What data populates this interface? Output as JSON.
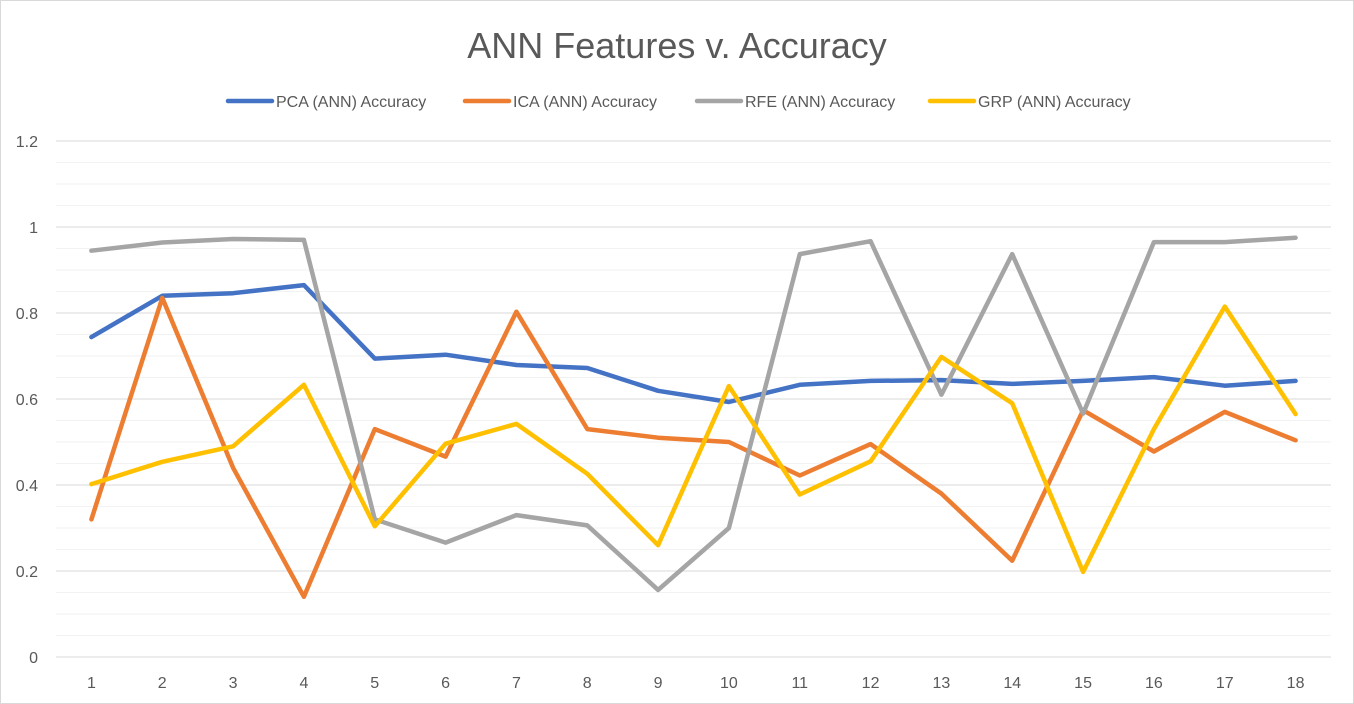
{
  "chart_data": {
    "type": "line",
    "title": "ANN Features v. Accuracy",
    "xlabel": "",
    "ylabel": "",
    "x": [
      1,
      2,
      3,
      4,
      5,
      6,
      7,
      8,
      9,
      10,
      11,
      12,
      13,
      14,
      15,
      16,
      17,
      18
    ],
    "ylim": [
      0,
      1.2
    ],
    "yticks": [
      0,
      0.2,
      0.4,
      0.6,
      0.8,
      1,
      1.2
    ],
    "ytick_labels": [
      "0",
      "0.2",
      "0.4",
      "0.6",
      "0.8",
      "1",
      "1.2"
    ],
    "grid": true,
    "minor_grid": true,
    "legend_position": "top",
    "series": [
      {
        "name": "PCA (ANN) Accuracy",
        "color": "#4472C4",
        "values": [
          0.744,
          0.84,
          0.846,
          0.865,
          0.694,
          0.703,
          0.679,
          0.672,
          0.619,
          0.593,
          0.633,
          0.642,
          0.644,
          0.635,
          0.642,
          0.651,
          0.631,
          0.642
        ]
      },
      {
        "name": "ICA (ANN) Accuracy",
        "color": "#ED7D31",
        "values": [
          0.32,
          0.835,
          0.44,
          0.14,
          0.53,
          0.466,
          0.803,
          0.53,
          0.51,
          0.5,
          0.422,
          0.495,
          0.38,
          0.224,
          0.574,
          0.478,
          0.57,
          0.504
        ]
      },
      {
        "name": "RFE (ANN) Accuracy",
        "color": "#A5A5A5",
        "values": [
          0.945,
          0.964,
          0.972,
          0.97,
          0.32,
          0.266,
          0.33,
          0.306,
          0.156,
          0.3,
          0.937,
          0.967,
          0.61,
          0.937,
          0.566,
          0.965,
          0.965,
          0.975
        ]
      },
      {
        "name": "GRP (ANN) Accuracy",
        "color": "#FFC000",
        "values": [
          0.402,
          0.454,
          0.49,
          0.633,
          0.304,
          0.496,
          0.542,
          0.426,
          0.26,
          0.63,
          0.378,
          0.455,
          0.698,
          0.59,
          0.198,
          0.53,
          0.815,
          0.565
        ]
      }
    ]
  }
}
